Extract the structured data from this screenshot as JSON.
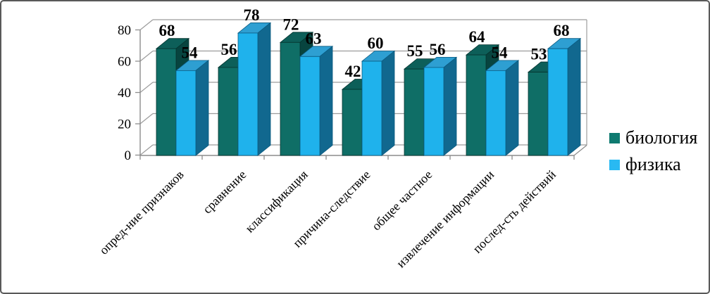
{
  "chart_data": {
    "type": "bar",
    "projection": "3d-clustered-column",
    "title": "",
    "xlabel": "",
    "ylabel": "",
    "categories": [
      "опред-ние признаков",
      "сравнение",
      "классификация",
      "причина-следствие",
      "общее частное",
      "извлечение информации",
      "послед-сть действий"
    ],
    "series": [
      {
        "name": "биология",
        "values": [
          68,
          56,
          72,
          42,
          55,
          64,
          53
        ],
        "color": "#0F6E66",
        "color_top": "#0D5F59",
        "color_side": "#07443F",
        "color_edge": "#05332E",
        "legend_color": "#0E7A70"
      },
      {
        "name": "физика",
        "values": [
          54,
          78,
          63,
          60,
          56,
          54,
          68
        ],
        "color": "#1FB2EC",
        "color_top": "#2E9FD2",
        "color_side": "#11688F",
        "color_edge": "#0B5A80",
        "legend_color": "#29B9F2"
      }
    ],
    "yticks": [
      0,
      20,
      40,
      60,
      80
    ],
    "ylim": [
      0,
      80
    ],
    "grid": true,
    "data_labels": true,
    "legend_position": "right"
  },
  "colors": {
    "gridline": "#9C9C9C",
    "axis": "#8C8C8C",
    "text": "#000000",
    "frame_border": "#595959",
    "background": "#FFFFFF"
  }
}
